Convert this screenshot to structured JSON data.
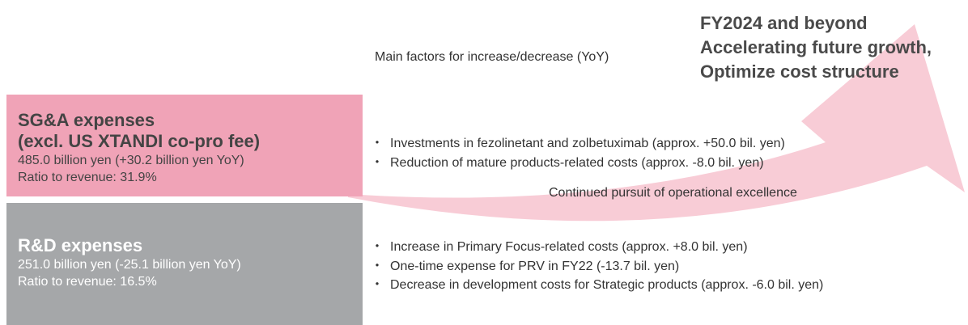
{
  "header": {
    "factors_title": "Main factors for increase/decrease (YoY)",
    "outlook": [
      "FY2024 and beyond",
      "Accelerating future growth,",
      "Optimize cost structure"
    ]
  },
  "sga": {
    "title": [
      "SG&A expenses",
      "(excl. US XTANDI co-pro fee)"
    ],
    "amount": "485.0 billion yen (+30.2 billion yen YoY)",
    "ratio": "Ratio to revenue: 31.9%",
    "factors": [
      "Investments in fezolinetant and zolbetuximab (approx. +50.0 bil. yen)",
      "Reduction of mature products-related costs (approx. -8.0 bil. yen)"
    ]
  },
  "rd": {
    "title": "R&D expenses",
    "amount": "251.0 billion yen (-25.1 billion yen YoY)",
    "ratio": "Ratio to revenue: 16.5%",
    "factors": [
      "Increase in Primary Focus-related costs (approx. +8.0 bil. yen)",
      "One-time expense for PRV in FY22 (-13.7 bil. yen)",
      "Decrease in development costs for Strategic products (approx. -6.0 bil. yen)"
    ]
  },
  "arrow_label": "Continued pursuit of operational excellence"
}
